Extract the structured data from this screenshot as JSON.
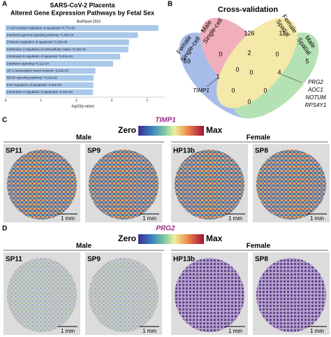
{
  "chart_data": {
    "type": "barh",
    "title": "SARS-CoV-2 Placenta",
    "subtitle": "Altered Gene Expression Pathways by Fetal Sex",
    "source": "BioPlanet 2019",
    "xlabel": "-log10(p-value)",
    "color": "#a9c8ea",
    "categories": [
      "T cell receptor regulation of apoptosis *4.77e-05",
      "Interferon-gamma signaling pathway *1.83e-04",
      "Prolactin regulation of apoptosis *3.25e-04",
      "Interleukin-1 regulation of extracellular matrix *3.42e-04",
      "Interleukin-5 regulation of apoptosis *5.82e-04",
      "Interferon signaling *9.11e-04",
      "AP-1 transcription factor network *2.91e-03",
      "BDNF signaling pathway *3.21e-03",
      "FSH regulation of apoptosis *3.28e-03",
      "Interleukin-4 regulation of apoptosis *3.42e-03"
    ],
    "values": [
      4.32,
      3.74,
      3.49,
      3.47,
      3.24,
      3.04,
      2.54,
      2.49,
      2.48,
      2.47
    ],
    "xlim": [
      0,
      4.5
    ],
    "xticks": [
      0,
      1,
      2,
      3,
      4
    ]
  },
  "panels": {
    "A": "A",
    "B": "B",
    "C": "C",
    "D": "D"
  },
  "venn": {
    "title": "Cross-validation",
    "sets": [
      [
        "Female",
        "Single-cell"
      ],
      [
        "Male",
        "Single-cell"
      ],
      [
        "Female",
        "Spatial"
      ],
      [
        "Male",
        "Spatial"
      ]
    ],
    "counts": [
      59,
      0,
      126,
      2,
      11,
      0,
      5,
      1,
      0,
      0,
      4,
      0,
      0,
      0
    ],
    "gene_a": "TIMP1",
    "gene_b": [
      "PRG2",
      "AOC1",
      "NOTUM",
      "RPS4Y1"
    ]
  },
  "spatial": [
    {
      "gene": "TIMP1",
      "low": "Zero",
      "high": "Max",
      "male": "Male",
      "female": "Female",
      "samples": [
        "SP11",
        "SP9",
        "HP13b",
        "SP8"
      ],
      "scale": "1 mm"
    },
    {
      "gene": "PRG2",
      "low": "Zero",
      "high": "Max",
      "male": "Male",
      "female": "Female",
      "samples": [
        "SP11",
        "SP9",
        "HP13b",
        "SP8"
      ],
      "scale": "1 mm"
    }
  ]
}
